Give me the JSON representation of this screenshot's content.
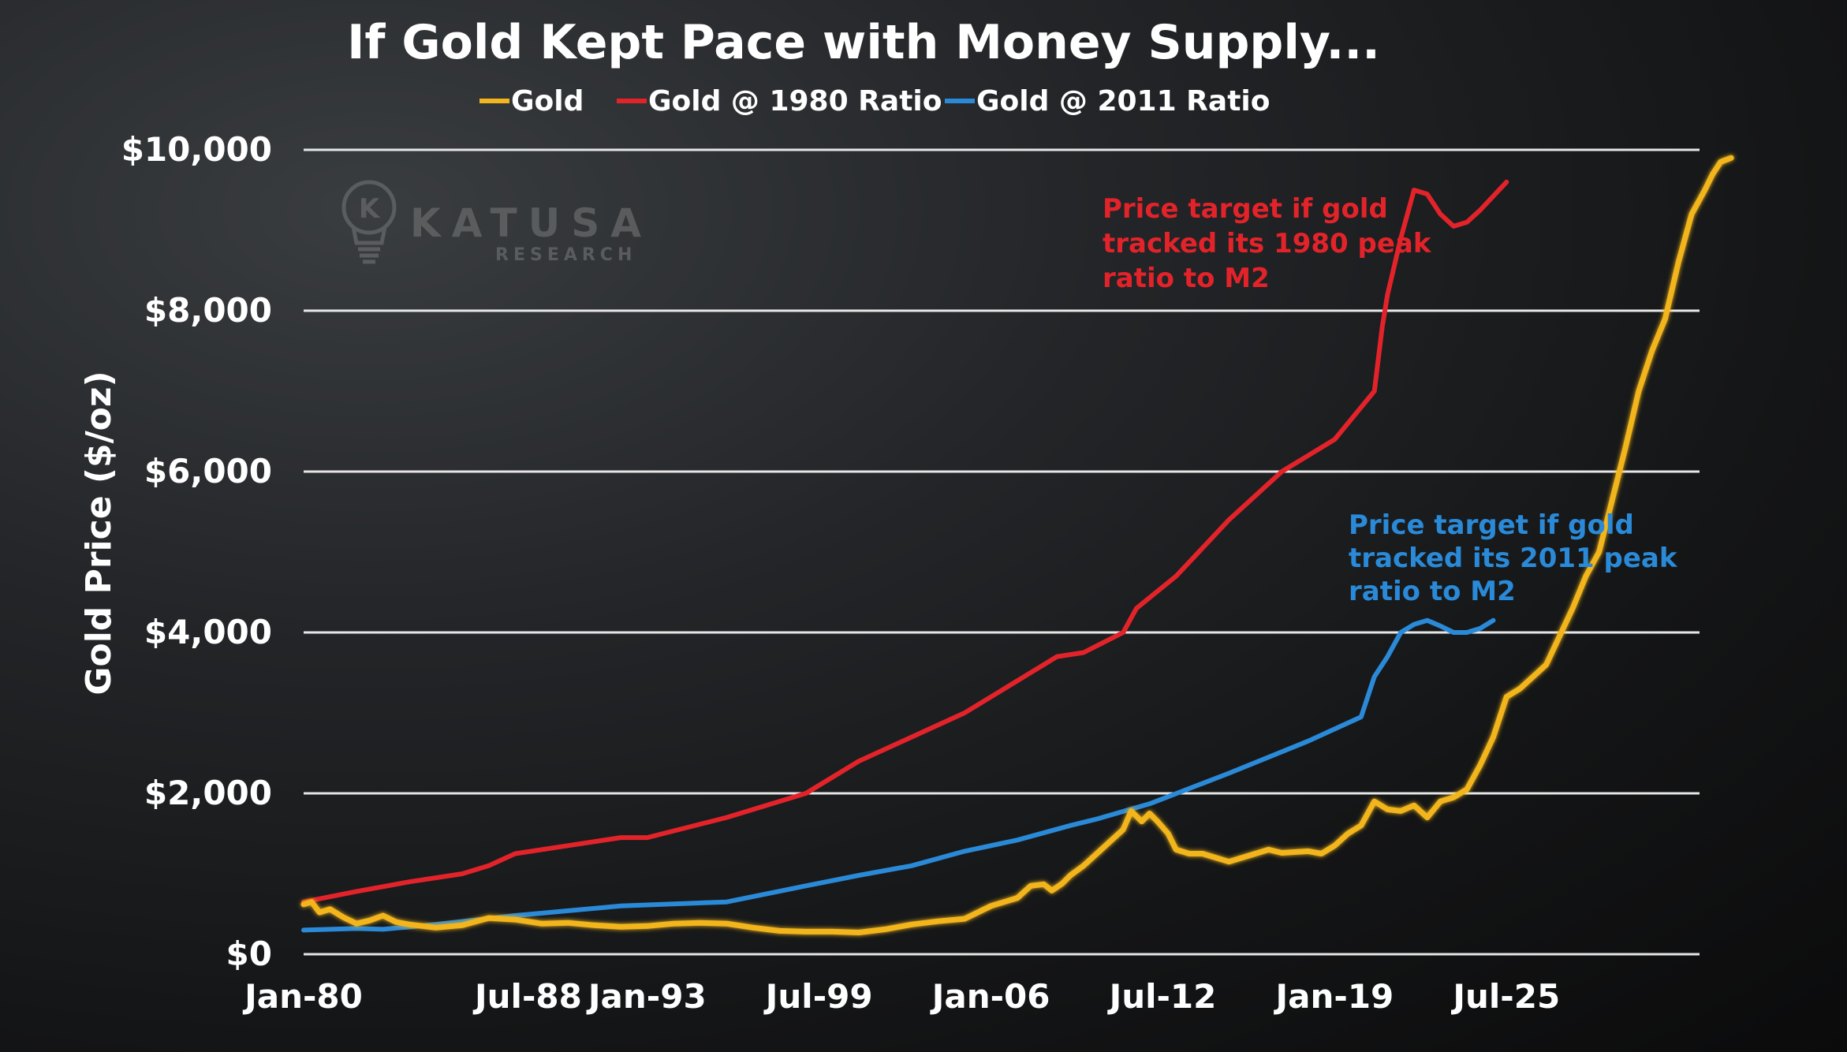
{
  "chart_data": {
    "type": "line",
    "title": "If Gold Kept Pace with Money Supply...",
    "xlabel": "",
    "ylabel": "Gold Price ($/oz)",
    "ylim": [
      0,
      10000
    ],
    "xlim": [
      1980.0,
      2034.5
    ],
    "yticks": [
      {
        "value": 0,
        "label": "$0"
      },
      {
        "value": 2000,
        "label": "$2,000"
      },
      {
        "value": 4000,
        "label": "$4,000"
      },
      {
        "value": 6000,
        "label": "$6,000"
      },
      {
        "value": 8000,
        "label": "$8,000"
      },
      {
        "value": 10000,
        "label": "$10,000"
      }
    ],
    "xticks": [
      {
        "value": 1980.0,
        "label": "Jan-80"
      },
      {
        "value": 1988.5,
        "label": "Jul-88"
      },
      {
        "value": 1993.0,
        "label": "Jan-93"
      },
      {
        "value": 1999.5,
        "label": "Jul-99"
      },
      {
        "value": 2006.0,
        "label": "Jan-06"
      },
      {
        "value": 2012.5,
        "label": "Jul-12"
      },
      {
        "value": 2019.0,
        "label": "Jan-19"
      },
      {
        "value": 2025.5,
        "label": "Jul-25"
      }
    ],
    "grid": true,
    "legend_position": "top",
    "series": [
      {
        "name": "Gold",
        "color": "#f2b51d",
        "x": [
          1980.0,
          1980.3,
          1980.6,
          1981.0,
          1981.5,
          1982.0,
          1982.5,
          1983.0,
          1983.5,
          1984.0,
          1985.0,
          1986.0,
          1987.0,
          1988.0,
          1989.0,
          1990.0,
          1991.0,
          1992.0,
          1993.0,
          1994.0,
          1995.0,
          1996.0,
          1997.0,
          1998.0,
          1999.0,
          2000.0,
          2001.0,
          2002.0,
          2003.0,
          2004.0,
          2005.0,
          2006.0,
          2006.5,
          2007.0,
          2007.5,
          2008.0,
          2008.3,
          2008.7,
          2009.0,
          2009.5,
          2010.0,
          2010.5,
          2011.0,
          2011.3,
          2011.7,
          2012.0,
          2012.3,
          2012.7,
          2013.0,
          2013.5,
          2014.0,
          2015.0,
          2016.0,
          2016.5,
          2017.0,
          2018.0,
          2018.5,
          2019.0,
          2019.5,
          2020.0,
          2020.5,
          2021.0,
          2021.5,
          2022.0,
          2022.5,
          2023.0,
          2023.5,
          2024.0,
          2024.5,
          2025.0,
          2025.5,
          2026.0,
          2027.0,
          2028.0,
          2028.5,
          2029.0,
          2030.0,
          2030.5,
          2031.0,
          2031.5,
          2032.0,
          2032.5,
          2033.0,
          2033.3,
          2033.6,
          2034.0
        ],
        "values": [
          620,
          650,
          520,
          560,
          460,
          380,
          420,
          480,
          400,
          370,
          330,
          360,
          450,
          430,
          380,
          390,
          360,
          340,
          350,
          380,
          390,
          380,
          330,
          290,
          280,
          280,
          270,
          310,
          370,
          410,
          440,
          600,
          650,
          700,
          850,
          870,
          790,
          880,
          980,
          1100,
          1250,
          1400,
          1550,
          1780,
          1650,
          1750,
          1650,
          1500,
          1300,
          1250,
          1250,
          1150,
          1250,
          1300,
          1260,
          1280,
          1250,
          1350,
          1500,
          1600,
          1900,
          1800,
          1780,
          1850,
          1700,
          1900,
          1950,
          2050,
          2350,
          2700,
          3200,
          3300,
          3600,
          4300,
          4700,
          5000,
          6300,
          7000,
          7500,
          7900,
          8600,
          9200,
          9500,
          9700,
          9850,
          9900
        ]
      },
      {
        "name": "Gold @ 1980 Ratio",
        "color": "#e3232a",
        "x": [
          1980.0,
          1982.0,
          1984.0,
          1986.0,
          1987.0,
          1988.0,
          1990.0,
          1992.0,
          1993.0,
          1996.0,
          1999.0,
          2001.0,
          2003.0,
          2005.0,
          2007.0,
          2008.5,
          2009.5,
          2011.0,
          2011.5,
          2013.0,
          2015.0,
          2017.0,
          2019.0,
          2020.5,
          2020.8,
          2021.0,
          2021.5,
          2022.0,
          2022.5,
          2023.0,
          2023.5,
          2024.0,
          2024.5,
          2025.5
        ],
        "values": [
          650,
          780,
          900,
          1000,
          1100,
          1250,
          1350,
          1450,
          1450,
          1700,
          2000,
          2400,
          2700,
          3000,
          3400,
          3700,
          3750,
          4000,
          4300,
          4700,
          5400,
          6000,
          6400,
          7000,
          7800,
          8200,
          8900,
          9500,
          9450,
          9200,
          9050,
          9100,
          9250,
          9600
        ]
      },
      {
        "name": "Gold @ 2011 Ratio",
        "color": "#2a8ad8",
        "x": [
          1980.0,
          1982.0,
          1983.0,
          1985.0,
          1988.0,
          1992.0,
          1996.0,
          1999.0,
          2001.0,
          2003.0,
          2005.0,
          2007.0,
          2009.0,
          2010.0,
          2012.0,
          2015.0,
          2018.0,
          2019.0,
          2020.0,
          2020.5,
          2021.0,
          2021.5,
          2022.0,
          2022.5,
          2023.0,
          2023.5,
          2024.0,
          2024.5,
          2025.0
        ],
        "values": [
          300,
          320,
          310,
          370,
          480,
          600,
          650,
          850,
          980,
          1100,
          1280,
          1420,
          1600,
          1680,
          1870,
          2250,
          2650,
          2800,
          2950,
          3450,
          3700,
          4000,
          4100,
          4150,
          4080,
          4000,
          4000,
          4050,
          4150
        ]
      }
    ],
    "annotations": [
      {
        "lines": [
          "Price target if gold",
          "tracked its 1980 peak",
          "ratio to M2"
        ],
        "color": "#e3232a"
      },
      {
        "lines": [
          "Price target if gold",
          "tracked its 2011 peak",
          "ratio to M2"
        ],
        "color": "#2a8ad8"
      }
    ]
  },
  "watermark": {
    "name": "KATUSA",
    "sub": "RESEARCH",
    "logo_letter": "K"
  }
}
